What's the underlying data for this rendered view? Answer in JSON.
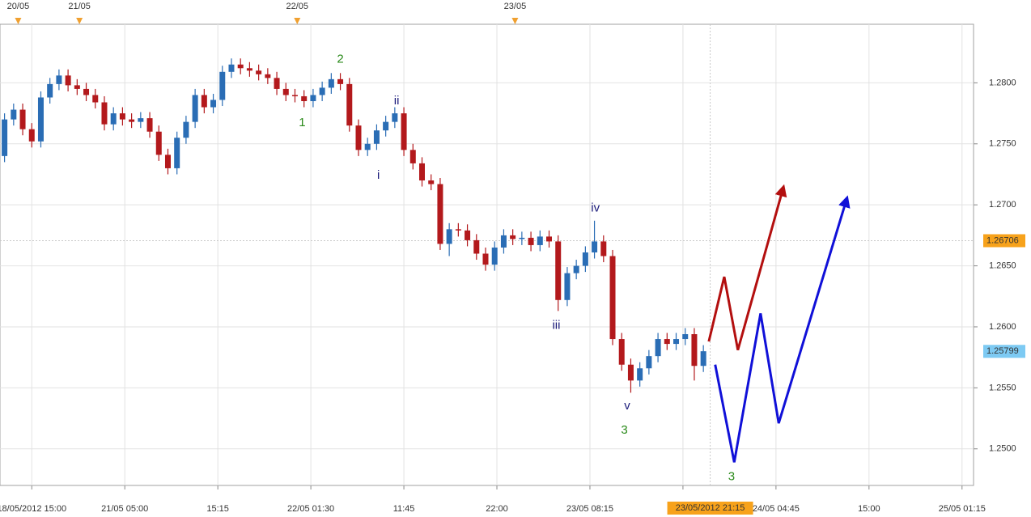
{
  "chart_data": {
    "type": "candlestick",
    "up_color": "#2a6db5",
    "down_color": "#b3191c",
    "xlim": [
      -3.5,
      103.5
    ],
    "ylim": [
      1.247,
      1.2848
    ],
    "grid": true,
    "xticks": [
      {
        "value": 0,
        "label": "18/05/2012 15:00"
      },
      {
        "value": 10.25,
        "label": "21/05 05:00"
      },
      {
        "value": 20.5,
        "label": "15:15"
      },
      {
        "value": 30.75,
        "label": "22/05 01:30"
      },
      {
        "value": 41,
        "label": "11:45"
      },
      {
        "value": 51.25,
        "label": "22:00"
      },
      {
        "value": 61.5,
        "label": "23/05 08:15"
      },
      {
        "value": 71.75,
        "label": null
      },
      {
        "value": 82,
        "label": "24/05 04:45"
      },
      {
        "value": 92.25,
        "label": "15:00"
      },
      {
        "value": 102.5,
        "label": "25/05 01:15"
      }
    ],
    "yticks": [
      {
        "value": 1.25,
        "label": "1.2500"
      },
      {
        "value": 1.255,
        "label": "1.2550"
      },
      {
        "value": 1.26,
        "label": "1.2600"
      },
      {
        "value": 1.265,
        "label": "1.2650"
      },
      {
        "value": 1.27,
        "label": "1.2700"
      },
      {
        "value": 1.275,
        "label": "1.2750"
      },
      {
        "value": 1.28,
        "label": "1.2800"
      }
    ],
    "day_markers": [
      {
        "value": -1.5,
        "label": "20/05"
      },
      {
        "value": 5.25,
        "label": "21/05"
      },
      {
        "value": 29.25,
        "label": "22/05"
      },
      {
        "value": 53.25,
        "label": "23/05"
      }
    ],
    "time_marker": {
      "value": 74.75,
      "label": "23/05/2012 21:15",
      "color": "#f7a21b"
    },
    "price_labels": [
      {
        "value": 1.26706,
        "color": "#f7a21b"
      },
      {
        "value": 1.25799,
        "color": "#7dcaf3"
      }
    ],
    "x": [
      -3,
      -2,
      -1,
      0,
      1,
      2,
      3,
      4,
      5,
      6,
      7,
      8,
      9,
      10,
      11,
      12,
      13,
      14,
      15,
      16,
      17,
      18,
      19,
      20,
      21,
      22,
      23,
      24,
      25,
      26,
      27,
      28,
      29,
      30,
      31,
      32,
      33,
      34,
      35,
      36,
      37,
      38,
      39,
      40,
      41,
      42,
      43,
      44,
      45,
      46,
      47,
      48,
      49,
      50,
      51,
      52,
      53,
      54,
      55,
      56,
      57,
      58,
      59,
      60,
      61,
      62,
      63,
      64,
      65,
      66,
      67,
      68,
      69,
      70,
      71,
      72,
      73,
      74
    ],
    "open": [
      1.274,
      1.277,
      1.2778,
      1.2762,
      1.2752,
      1.2788,
      1.2799,
      1.2806,
      1.2798,
      1.2795,
      1.279,
      1.2784,
      1.2766,
      1.2775,
      1.277,
      1.2768,
      1.2771,
      1.276,
      1.2741,
      1.273,
      1.2755,
      1.2768,
      1.279,
      1.278,
      1.2786,
      1.2809,
      1.2815,
      1.2812,
      1.281,
      1.2807,
      1.2804,
      1.2795,
      1.279,
      1.2789,
      1.2785,
      1.279,
      1.2796,
      1.2803,
      1.2799,
      1.2765,
      1.2745,
      1.275,
      1.2761,
      1.2768,
      1.2775,
      1.2745,
      1.2734,
      1.272,
      1.2717,
      1.2668,
      1.268,
      1.2679,
      1.2671,
      1.266,
      1.2651,
      1.2665,
      1.2675,
      1.2672,
      1.2673,
      1.2667,
      1.2674,
      1.267,
      1.2622,
      1.2644,
      1.265,
      1.2661,
      1.267,
      1.2658,
      1.259,
      1.2569,
      1.2556,
      1.2566,
      1.2576,
      1.259,
      1.2586,
      1.259,
      1.2594,
      1.2568
    ],
    "high": [
      1.2775,
      1.2783,
      1.2783,
      1.2767,
      1.2793,
      1.2804,
      1.2811,
      1.2811,
      1.2803,
      1.28,
      1.2795,
      1.2789,
      1.278,
      1.278,
      1.2775,
      1.2776,
      1.2776,
      1.2765,
      1.2746,
      1.276,
      1.2773,
      1.2795,
      1.2795,
      1.2791,
      1.2814,
      1.282,
      1.282,
      1.2817,
      1.2815,
      1.2812,
      1.2809,
      1.28,
      1.2795,
      1.2794,
      1.2795,
      1.2801,
      1.2808,
      1.2808,
      1.2804,
      1.277,
      1.2755,
      1.2766,
      1.2773,
      1.278,
      1.278,
      1.275,
      1.2739,
      1.2725,
      1.2722,
      1.2685,
      1.2685,
      1.2684,
      1.2676,
      1.2665,
      1.267,
      1.268,
      1.268,
      1.2678,
      1.2678,
      1.2679,
      1.2679,
      1.2675,
      1.2649,
      1.2655,
      1.2666,
      1.2687,
      1.2675,
      1.2663,
      1.2595,
      1.2574,
      1.2571,
      1.2581,
      1.2595,
      1.2595,
      1.2595,
      1.2599,
      1.2599,
      1.2585
    ],
    "low": [
      1.2735,
      1.2765,
      1.2757,
      1.2747,
      1.2747,
      1.2783,
      1.2794,
      1.2793,
      1.279,
      1.2785,
      1.2779,
      1.2761,
      1.2761,
      1.2765,
      1.2763,
      1.2763,
      1.2755,
      1.2736,
      1.2725,
      1.2725,
      1.275,
      1.2763,
      1.2775,
      1.2775,
      1.2781,
      1.2804,
      1.2807,
      1.2805,
      1.2802,
      1.2799,
      1.279,
      1.2785,
      1.2784,
      1.278,
      1.278,
      1.2785,
      1.2791,
      1.2794,
      1.276,
      1.274,
      1.274,
      1.2745,
      1.2756,
      1.2763,
      1.274,
      1.2729,
      1.2715,
      1.2712,
      1.2663,
      1.2658,
      1.2674,
      1.2666,
      1.2655,
      1.2646,
      1.2646,
      1.266,
      1.2667,
      1.2667,
      1.2662,
      1.2662,
      1.2665,
      1.2613,
      1.2617,
      1.2639,
      1.2645,
      1.2656,
      1.2653,
      1.2585,
      1.2564,
      1.2546,
      1.2551,
      1.2561,
      1.2571,
      1.2581,
      1.2581,
      1.2585,
      1.2556,
      1.2563
    ],
    "close": [
      1.277,
      1.2778,
      1.2762,
      1.2752,
      1.2788,
      1.2799,
      1.2806,
      1.2798,
      1.2795,
      1.279,
      1.2784,
      1.2766,
      1.2775,
      1.277,
      1.2768,
      1.2771,
      1.276,
      1.2741,
      1.273,
      1.2755,
      1.2768,
      1.279,
      1.278,
      1.2786,
      1.2809,
      1.2815,
      1.2812,
      1.281,
      1.2807,
      1.2804,
      1.2795,
      1.279,
      1.2789,
      1.2785,
      1.279,
      1.2796,
      1.2803,
      1.2799,
      1.2765,
      1.2745,
      1.275,
      1.2761,
      1.2768,
      1.2775,
      1.2745,
      1.2734,
      1.272,
      1.2717,
      1.2668,
      1.268,
      1.2679,
      1.2671,
      1.266,
      1.2651,
      1.2665,
      1.2675,
      1.2672,
      1.2673,
      1.2667,
      1.2674,
      1.267,
      1.2622,
      1.2644,
      1.265,
      1.2661,
      1.267,
      1.2658,
      1.259,
      1.2569,
      1.2556,
      1.2566,
      1.2576,
      1.259,
      1.2586,
      1.259,
      1.2594,
      1.2568,
      1.258
    ],
    "projections": [
      {
        "color": "#b30f0f",
        "x": [
          74.6,
          76.3,
          77.8,
          82.8
        ],
        "values": [
          1.2588,
          1.2641,
          1.2581,
          1.2714
        ]
      },
      {
        "color": "#1010d8",
        "x": [
          75.3,
          77.4,
          80.3,
          82.3,
          89.8
        ],
        "values": [
          1.2569,
          1.2489,
          1.2611,
          1.2521,
          1.2705
        ]
      }
    ],
    "annotations": [
      {
        "text": "1",
        "x": 29.8,
        "y": 1.2767,
        "color": "#2a8a1a"
      },
      {
        "text": "2",
        "x": 34.0,
        "y": 1.2819,
        "color": "#2a8a1a"
      },
      {
        "text": "ii",
        "x": 40.2,
        "y": 1.2785,
        "color": "#1a1a7a"
      },
      {
        "text": "i",
        "x": 38.2,
        "y": 1.2724,
        "color": "#1a1a7a"
      },
      {
        "text": "iv",
        "x": 62.1,
        "y": 1.2697,
        "color": "#1a1a7a"
      },
      {
        "text": "iii",
        "x": 57.8,
        "y": 1.2601,
        "color": "#1a1a7a"
      },
      {
        "text": "v",
        "x": 65.6,
        "y": 1.2535,
        "color": "#1a1a7a"
      },
      {
        "text": "3",
        "x": 65.3,
        "y": 1.2515,
        "color": "#2a8a1a"
      },
      {
        "text": "3",
        "x": 77.1,
        "y": 1.2477,
        "color": "#2a8a1a"
      }
    ]
  }
}
